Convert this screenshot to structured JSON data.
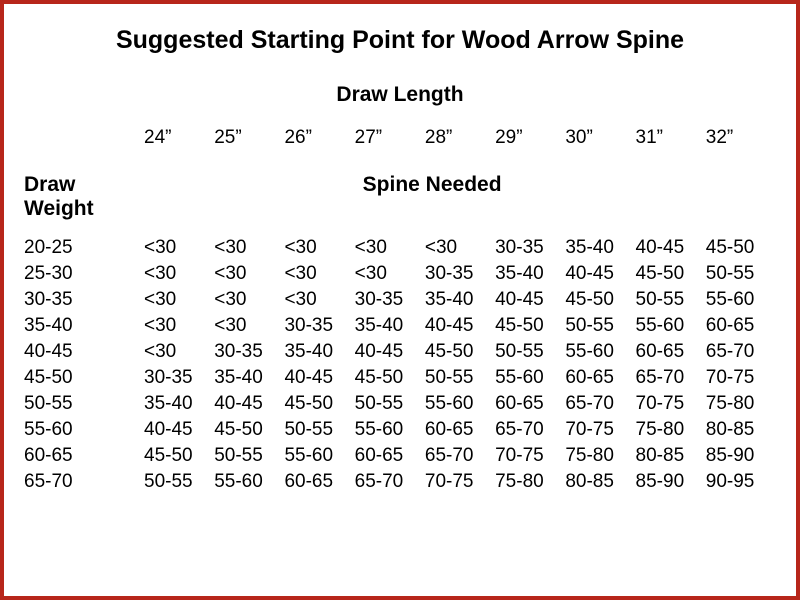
{
  "title": "Suggested Starting Point for Wood Arrow Spine",
  "top_axis_label": "Draw Length",
  "left_axis_label_line1": "Draw",
  "left_axis_label_line2": "Weight",
  "mid_axis_label": "Spine Needed",
  "border_color": "#b7261a",
  "background_color": "#ffffff",
  "font_family": "Arial",
  "title_fontsize": 25,
  "axis_fontsize": 21,
  "cell_fontsize": 19,
  "columns": [
    "24”",
    "25”",
    "26”",
    "27”",
    "28”",
    "29”",
    "30”",
    "31”",
    "32”"
  ],
  "rows": [
    {
      "label": "20-25",
      "cells": [
        "<30",
        "<30",
        "<30",
        "<30",
        "<30",
        "30-35",
        "35-40",
        "40-45",
        "45-50"
      ]
    },
    {
      "label": "25-30",
      "cells": [
        "<30",
        "<30",
        "<30",
        "<30",
        "30-35",
        "35-40",
        "40-45",
        "45-50",
        "50-55"
      ]
    },
    {
      "label": "30-35",
      "cells": [
        "<30",
        "<30",
        "<30",
        "30-35",
        "35-40",
        "40-45",
        "45-50",
        "50-55",
        "55-60"
      ]
    },
    {
      "label": "35-40",
      "cells": [
        "<30",
        "<30",
        "30-35",
        "35-40",
        "40-45",
        "45-50",
        "50-55",
        "55-60",
        "60-65"
      ]
    },
    {
      "label": "40-45",
      "cells": [
        "<30",
        "30-35",
        "35-40",
        "40-45",
        "45-50",
        "50-55",
        "55-60",
        "60-65",
        "65-70"
      ]
    },
    {
      "label": "45-50",
      "cells": [
        "30-35",
        "35-40",
        "40-45",
        "45-50",
        "50-55",
        "55-60",
        "60-65",
        "65-70",
        "70-75"
      ]
    },
    {
      "label": "50-55",
      "cells": [
        "35-40",
        "40-45",
        "45-50",
        "50-55",
        "55-60",
        "60-65",
        "65-70",
        "70-75",
        "75-80"
      ]
    },
    {
      "label": "55-60",
      "cells": [
        "40-45",
        "45-50",
        "50-55",
        "55-60",
        "60-65",
        "65-70",
        "70-75",
        "75-80",
        "80-85"
      ]
    },
    {
      "label": "60-65",
      "cells": [
        "45-50",
        "50-55",
        "55-60",
        "60-65",
        "65-70",
        "70-75",
        "75-80",
        "80-85",
        "85-90"
      ]
    },
    {
      "label": "65-70",
      "cells": [
        "50-55",
        "55-60",
        "60-65",
        "65-70",
        "70-75",
        "75-80",
        "80-85",
        "85-90",
        "90-95"
      ]
    }
  ]
}
